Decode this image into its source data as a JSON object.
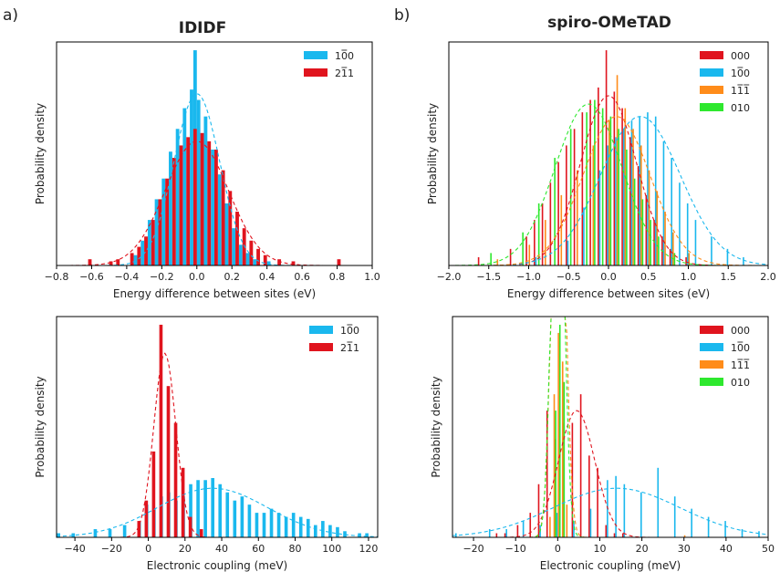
{
  "panel_letters": [
    "a)",
    "b)"
  ],
  "panel_titles": [
    "IDIDF",
    "spiro-OMeTAD"
  ],
  "colors": {
    "000": "#e0141e",
    "100": "#1ab8ee",
    "211": "#e0141e",
    "111": "#ff8c1a",
    "010": "#2ee82e"
  },
  "chart_data": [
    {
      "type": "bar",
      "id": "tl",
      "xlabel": "Energy difference between sites (eV)",
      "ylabel": "Probability density",
      "xlim": [
        -0.8,
        1.0
      ],
      "ylim": [
        0,
        1.08
      ],
      "xticks": [
        -0.8,
        -0.6,
        -0.4,
        -0.2,
        0.0,
        0.2,
        0.4,
        0.6,
        0.8,
        1.0
      ],
      "xtick_labels": [
        "−0.8",
        "−0.6",
        "−0.4",
        "−0.2",
        "0.0",
        "0.2",
        "0.4",
        "0.6",
        "0.8",
        "1.0"
      ],
      "grid": false,
      "legend": "top-right",
      "bin_width": 0.04,
      "series": [
        {
          "name": "100",
          "color": "#1ab8ee",
          "mu": 0.0,
          "sigma": 0.13,
          "peak": 0.83,
          "x": [
            -0.34,
            -0.3,
            -0.26,
            -0.22,
            -0.18,
            -0.14,
            -0.1,
            -0.06,
            -0.02,
            0.0,
            0.02,
            0.06,
            0.1,
            0.14,
            0.18,
            0.22,
            0.26,
            0.3,
            0.34,
            0.42
          ],
          "values": [
            0.05,
            0.12,
            0.22,
            0.32,
            0.42,
            0.55,
            0.66,
            0.76,
            0.85,
            1.04,
            0.8,
            0.72,
            0.56,
            0.44,
            0.3,
            0.18,
            0.1,
            0.06,
            0.03,
            0.02
          ]
        },
        {
          "name": "211",
          "color": "#e0141e",
          "mu": 0.0,
          "sigma": 0.18,
          "peak": 0.6,
          "x": [
            -0.62,
            -0.5,
            -0.46,
            -0.38,
            -0.34,
            -0.3,
            -0.26,
            -0.22,
            -0.18,
            -0.14,
            -0.1,
            -0.06,
            -0.02,
            0.02,
            0.06,
            0.1,
            0.14,
            0.18,
            0.22,
            0.26,
            0.3,
            0.34,
            0.38,
            0.46,
            0.54,
            0.8
          ],
          "values": [
            0.03,
            0.02,
            0.03,
            0.06,
            0.09,
            0.14,
            0.22,
            0.32,
            0.42,
            0.52,
            0.58,
            0.62,
            0.66,
            0.64,
            0.6,
            0.56,
            0.46,
            0.36,
            0.26,
            0.18,
            0.12,
            0.08,
            0.05,
            0.03,
            0.02,
            0.03
          ]
        }
      ]
    },
    {
      "type": "bar",
      "id": "tr",
      "xlabel": "Energy difference between sites (eV)",
      "ylabel": "Probability density",
      "xlim": [
        -2.0,
        2.0
      ],
      "ylim": [
        0,
        1.08
      ],
      "xticks": [
        -2.0,
        -1.5,
        -1.0,
        -0.5,
        0.0,
        0.5,
        1.0,
        1.5,
        2.0
      ],
      "xtick_labels": [
        "−2.0",
        "−1.5",
        "−1.0",
        "−0.5",
        "0.0",
        "0.5",
        "1.0",
        "1.5",
        "2.0"
      ],
      "grid": false,
      "legend": "top-right",
      "bin_width": 0.05,
      "series": [
        {
          "name": "000",
          "color": "#e0141e",
          "mu": 0.0,
          "sigma": 0.35,
          "peak": 0.82,
          "x": [
            -1.6,
            -1.2,
            -1.0,
            -0.9,
            -0.8,
            -0.7,
            -0.6,
            -0.5,
            -0.4,
            -0.3,
            -0.2,
            -0.1,
            0.0,
            0.1,
            0.2,
            0.3,
            0.4,
            0.5,
            0.6,
            0.7,
            0.8,
            1.0
          ],
          "values": [
            0.04,
            0.08,
            0.14,
            0.22,
            0.3,
            0.4,
            0.5,
            0.58,
            0.66,
            0.74,
            0.8,
            0.86,
            1.04,
            0.84,
            0.76,
            0.62,
            0.48,
            0.34,
            0.22,
            0.14,
            0.08,
            0.04
          ]
        },
        {
          "name": "100",
          "color": "#1ab8ee",
          "mu": 0.4,
          "sigma": 0.5,
          "peak": 0.72,
          "x": [
            -0.9,
            -0.5,
            -0.3,
            -0.1,
            0.0,
            0.1,
            0.2,
            0.3,
            0.4,
            0.5,
            0.6,
            0.7,
            0.8,
            0.9,
            1.0,
            1.1,
            1.3,
            1.5,
            1.7
          ],
          "values": [
            0.04,
            0.12,
            0.28,
            0.46,
            0.58,
            0.62,
            0.66,
            0.7,
            0.72,
            0.74,
            0.72,
            0.6,
            0.52,
            0.4,
            0.3,
            0.22,
            0.14,
            0.08,
            0.04
          ]
        },
        {
          "name": "111",
          "color": "#ff8c1a",
          "mu": 0.1,
          "sigma": 0.42,
          "peak": 0.72,
          "x": [
            -1.4,
            -1.0,
            -0.8,
            -0.6,
            -0.4,
            -0.2,
            0.0,
            0.1,
            0.2,
            0.3,
            0.4,
            0.5,
            0.6,
            0.7,
            0.8,
            1.0
          ],
          "values": [
            0.03,
            0.1,
            0.22,
            0.34,
            0.46,
            0.58,
            0.7,
            0.92,
            0.76,
            0.66,
            0.58,
            0.46,
            0.36,
            0.26,
            0.16,
            0.06
          ]
        },
        {
          "name": "010",
          "color": "#2ee82e",
          "mu": -0.25,
          "sigma": 0.42,
          "peak": 0.78,
          "x": [
            -1.5,
            -1.1,
            -0.9,
            -0.7,
            -0.5,
            -0.3,
            -0.2,
            -0.1,
            0.0,
            0.1,
            0.2,
            0.3,
            0.4,
            0.5,
            0.6,
            0.8
          ],
          "values": [
            0.06,
            0.16,
            0.3,
            0.52,
            0.66,
            0.74,
            0.8,
            0.76,
            0.72,
            0.66,
            0.56,
            0.42,
            0.32,
            0.22,
            0.14,
            0.06
          ]
        }
      ]
    },
    {
      "type": "bar",
      "id": "bl",
      "xlabel": "Electronic coupling (meV)",
      "ylabel": "Probability density",
      "xlim": [
        -50,
        125
      ],
      "ylim": [
        0,
        1.08
      ],
      "xticks": [
        -40,
        -20,
        0,
        20,
        40,
        60,
        80,
        100,
        120
      ],
      "xtick_labels": [
        "−40",
        "−20",
        "0",
        "20",
        "40",
        "60",
        "80",
        "100",
        "120"
      ],
      "grid": false,
      "legend": "top-right",
      "bin_width": 3.6,
      "series": [
        {
          "name": "100",
          "color": "#1ab8ee",
          "mu": 35,
          "sigma": 30,
          "peak": 0.24,
          "x": [
            -48,
            -40,
            -28,
            -20,
            -12,
            -4,
            0,
            4,
            8,
            12,
            16,
            20,
            24,
            28,
            32,
            36,
            40,
            44,
            48,
            52,
            56,
            60,
            64,
            68,
            72,
            76,
            80,
            84,
            88,
            92,
            96,
            100,
            104,
            108,
            116,
            120
          ],
          "values": [
            0.02,
            0.02,
            0.04,
            0.04,
            0.06,
            0.08,
            0.16,
            0.14,
            0.2,
            0.22,
            0.18,
            0.2,
            0.26,
            0.28,
            0.28,
            0.29,
            0.26,
            0.22,
            0.18,
            0.2,
            0.16,
            0.12,
            0.12,
            0.14,
            0.12,
            0.1,
            0.12,
            0.1,
            0.09,
            0.06,
            0.08,
            0.06,
            0.05,
            0.03,
            0.02,
            0.02
          ]
        },
        {
          "name": "211",
          "color": "#e0141e",
          "mu": 9,
          "sigma": 6,
          "peak": 0.9,
          "x": [
            -6,
            -2,
            2,
            6,
            10,
            14,
            18,
            22,
            28
          ],
          "values": [
            0.08,
            0.18,
            0.42,
            1.04,
            0.74,
            0.56,
            0.34,
            0.1,
            0.04
          ]
        }
      ]
    },
    {
      "type": "bar",
      "id": "br",
      "xlabel": "Electronic coupling (meV)",
      "ylabel": "Probability density",
      "xlim": [
        -25,
        50
      ],
      "ylim": [
        0,
        1.08
      ],
      "xticks": [
        -20,
        -10,
        0,
        10,
        20,
        30,
        40,
        50
      ],
      "xtick_labels": [
        "−20",
        "−10",
        "0",
        "10",
        "20",
        "30",
        "40",
        "50"
      ],
      "grid": false,
      "legend": "top-right",
      "bin_width": 1.05,
      "series": [
        {
          "name": "000",
          "color": "#e0141e",
          "mu": 4.5,
          "sigma": 4.3,
          "peak": 0.62,
          "x": [
            -14,
            -12,
            -9,
            -6,
            -4,
            -2,
            0,
            2,
            4,
            6,
            8,
            10,
            12,
            14,
            16
          ],
          "values": [
            0.02,
            0.02,
            0.06,
            0.12,
            0.26,
            0.62,
            0.48,
            0.56,
            0.56,
            0.7,
            0.4,
            0.34,
            0.06,
            0.02,
            0.02
          ]
        },
        {
          "name": "100",
          "color": "#1ab8ee",
          "mu": 14,
          "sigma": 15,
          "peak": 0.24,
          "x": [
            -24,
            -16,
            -12,
            -8,
            -4,
            0,
            4,
            8,
            12,
            14,
            16,
            20,
            24,
            28,
            32,
            36,
            40,
            44,
            48
          ],
          "values": [
            0.02,
            0.04,
            0.04,
            0.08,
            0.06,
            0.12,
            0.08,
            0.14,
            0.28,
            0.3,
            0.26,
            0.22,
            0.34,
            0.2,
            0.14,
            0.1,
            0.08,
            0.04,
            0.03
          ]
        },
        {
          "name": "111",
          "color": "#ff8c1a",
          "mu": 0.2,
          "sigma": 1.5,
          "peak": 2.4,
          "x": [
            -2,
            -1,
            0,
            1,
            2,
            30
          ],
          "values": [
            0.1,
            0.7,
            1.0,
            0.86,
            0.16,
            0.01
          ]
        },
        {
          "name": "010",
          "color": "#2ee82e",
          "mu": 0.0,
          "sigma": 1.4,
          "peak": 2.4,
          "x": [
            -1,
            0,
            1
          ],
          "values": [
            0.62,
            1.04,
            0.76
          ]
        }
      ]
    }
  ]
}
